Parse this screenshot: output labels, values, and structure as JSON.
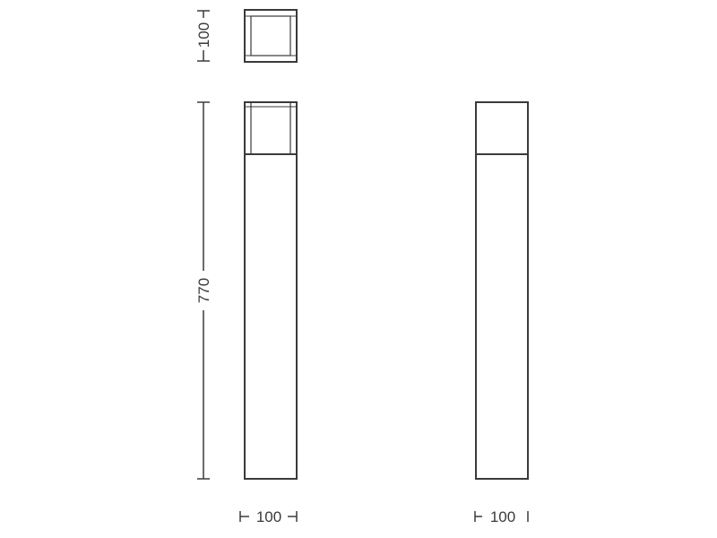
{
  "drawing": {
    "line_color": "#3a3a3a",
    "background": "#ffffff",
    "dimensions": {
      "top_view_depth": "100",
      "overall_height": "770",
      "front_view_width": "100",
      "side_view_width": "100"
    }
  }
}
